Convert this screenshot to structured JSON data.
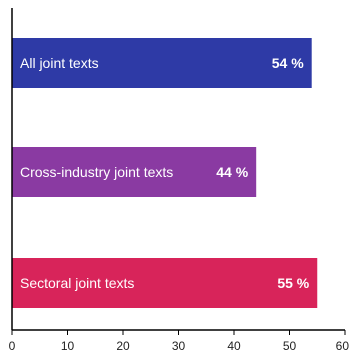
{
  "chart_data": {
    "type": "bar",
    "orientation": "horizontal",
    "categories": [
      "All joint texts",
      "Cross-industry joint texts",
      "Sectoral joint texts"
    ],
    "values": [
      54,
      44,
      55
    ],
    "value_labels": [
      "54 %",
      "44 %",
      "55 %"
    ],
    "colors": [
      "#2e3aa6",
      "#8a3aa2",
      "#d8245a"
    ],
    "xlim": [
      0,
      60
    ],
    "x_ticks": [
      "0",
      "10",
      "20",
      "30",
      "40",
      "50",
      "60"
    ],
    "grid": false,
    "legend": "none"
  }
}
